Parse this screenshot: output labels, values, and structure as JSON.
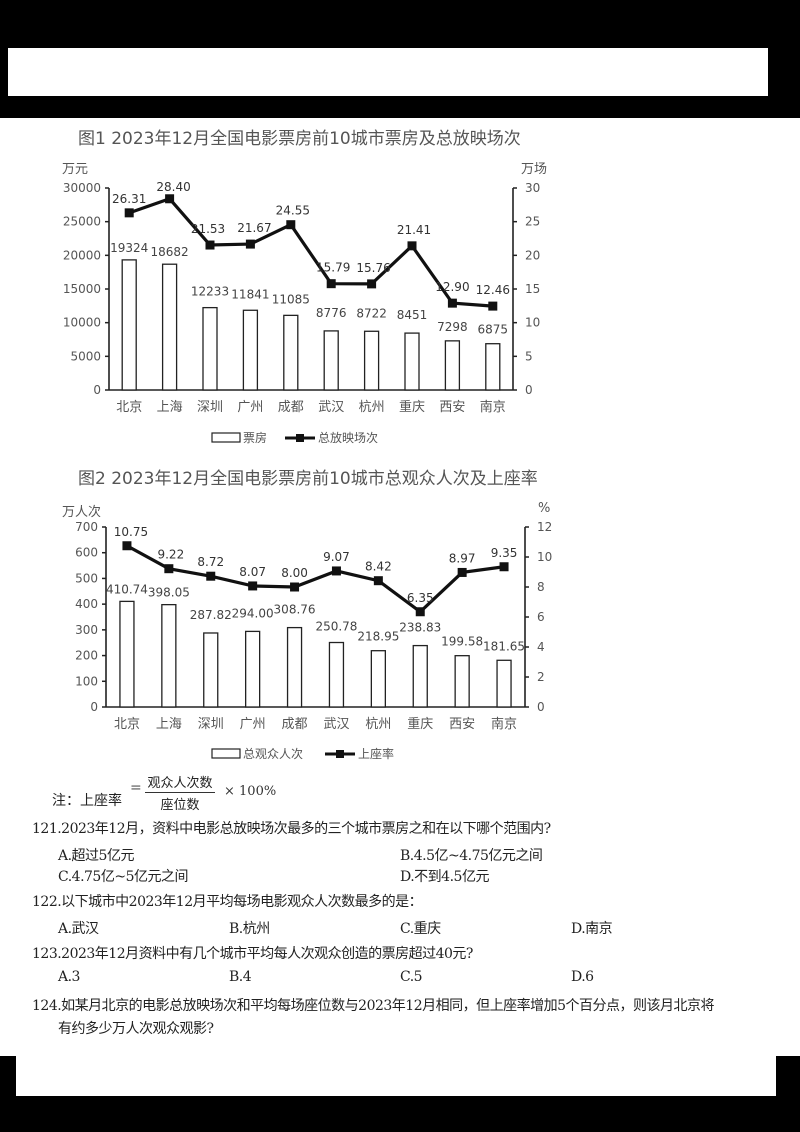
{
  "chart_data": [
    {
      "type": "bar+line",
      "title": "图1 2023年12月全国电影票房前10城市票房及总放映场次",
      "categories": [
        "北京",
        "上海",
        "深圳",
        "广州",
        "成都",
        "武汉",
        "杭州",
        "重庆",
        "西安",
        "南京"
      ],
      "series": [
        {
          "name": "票房",
          "type": "bar",
          "axis": "left",
          "values": [
            19324,
            18682,
            12233,
            11841,
            11085,
            8776,
            8722,
            8451,
            7298,
            6875
          ]
        },
        {
          "name": "总放映场次",
          "type": "line",
          "axis": "right",
          "values": [
            26.31,
            28.4,
            21.53,
            21.67,
            24.55,
            15.79,
            15.76,
            21.41,
            12.9,
            12.46
          ]
        }
      ],
      "ylabel_left": "万元",
      "ylabel_right": "万场",
      "ylim_left": [
        0,
        30000
      ],
      "ylim_right": [
        0,
        30
      ],
      "yticks_left": [
        "0",
        "5000",
        "10000",
        "15000",
        "20000",
        "25000",
        "30000"
      ],
      "yticks_right": [
        "0",
        "5",
        "10",
        "15",
        "20",
        "25",
        "30"
      ],
      "legend": [
        "票房",
        "总放映场次"
      ],
      "legend_position": "bottom",
      "grid": false
    },
    {
      "type": "bar+line",
      "title": "图2 2023年12月全国电影票房前10城市总观众人次及上座率",
      "categories": [
        "北京",
        "上海",
        "深圳",
        "广州",
        "成都",
        "武汉",
        "杭州",
        "重庆",
        "西安",
        "南京"
      ],
      "series": [
        {
          "name": "总观众人次",
          "type": "bar",
          "axis": "left",
          "values": [
            410.74,
            398.05,
            287.82,
            294.0,
            308.76,
            250.78,
            218.95,
            238.83,
            199.58,
            181.65
          ]
        },
        {
          "name": "上座率",
          "type": "line",
          "axis": "right",
          "values": [
            10.75,
            9.22,
            8.72,
            8.07,
            8.0,
            9.07,
            8.42,
            6.35,
            8.97,
            9.35
          ]
        }
      ],
      "ylabel_left": "万人次",
      "ylabel_right": "%",
      "ylim_left": [
        0,
        700
      ],
      "ylim_right": [
        0,
        12
      ],
      "yticks_left": [
        "0",
        "100",
        "200",
        "300",
        "400",
        "500",
        "600",
        "700"
      ],
      "yticks_right": [
        "0",
        "2",
        "4",
        "6",
        "8",
        "10",
        "12"
      ],
      "legend": [
        "总观众人次",
        "上座率"
      ],
      "legend_position": "bottom",
      "grid": false
    }
  ],
  "note": {
    "label": "注：上座率",
    "eq": "=",
    "numerator": "观众人次数",
    "denominator": "座位数",
    "times": "× 100%"
  },
  "questions": [
    {
      "text": "121.2023年12月，资料中电影总放映场次最多的三个城市票房之和在以下哪个范围内?",
      "options": [
        "A.超过5亿元",
        "B.4.5亿~4.75亿元之间",
        "C.4.75亿~5亿元之间",
        "D.不到4.5亿元"
      ]
    },
    {
      "text": "122.以下城市中2023年12月平均每场电影观众人次数最多的是：",
      "options": [
        "A.武汉",
        "B.杭州",
        "C.重庆",
        "D.南京"
      ]
    },
    {
      "text": "123.2023年12月资料中有几个城市平均每人次观众创造的票房超过40元?",
      "options": [
        "A.3",
        "B.4",
        "C.5",
        "D.6"
      ]
    },
    {
      "text_line1": "124.如某月北京的电影总放映场次和平均每场座位数与2023年12月相同，但上座率增加5个百分点，则该月北京将",
      "text_line2": "有约多少万人次观众观影?"
    }
  ]
}
